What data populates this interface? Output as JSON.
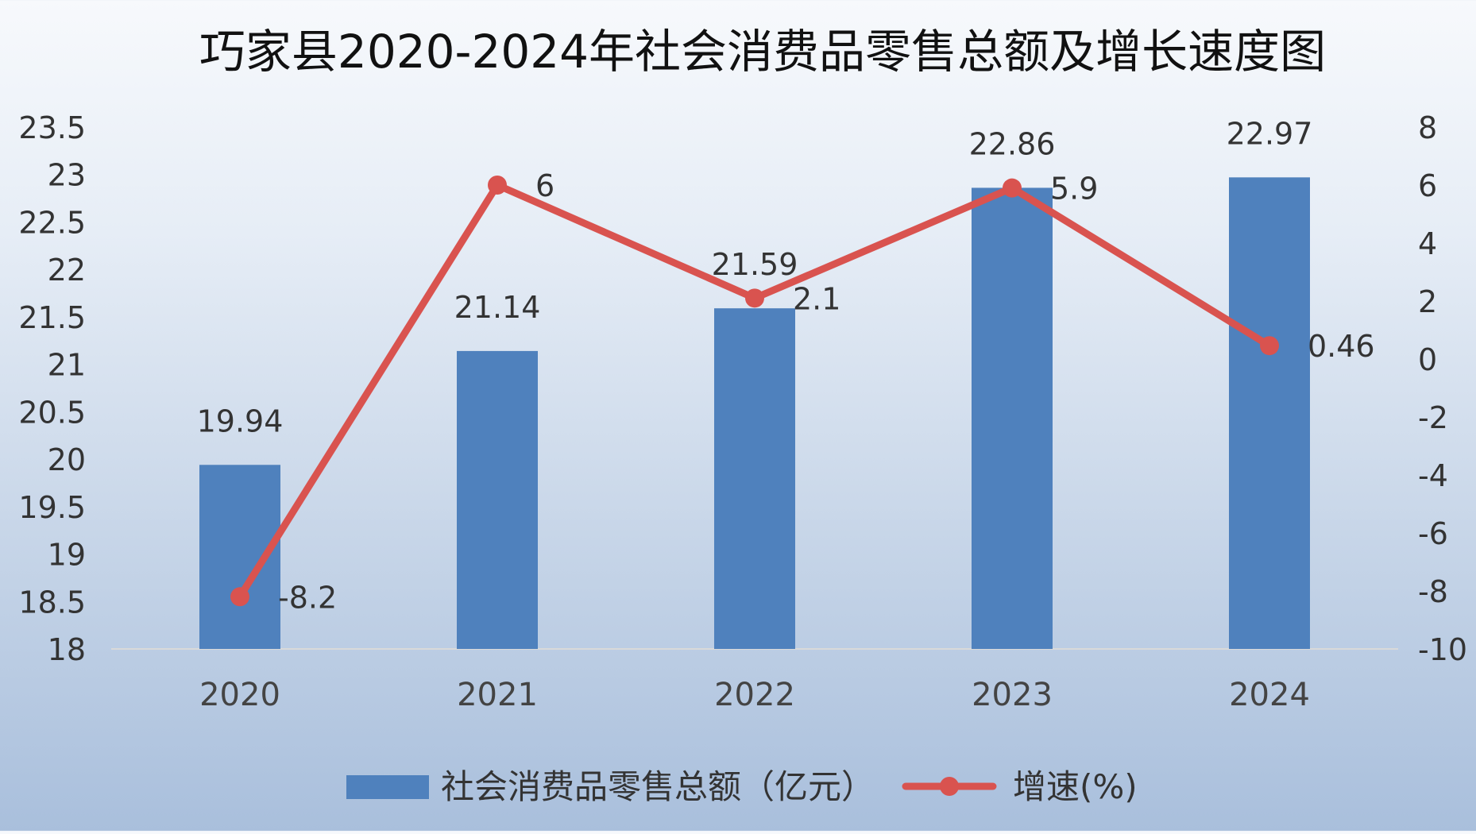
{
  "chart_data": {
    "type": "bar",
    "title": "巧家县2020-2024年社会消费品零售总额及增长速度图",
    "categories": [
      "2020",
      "2021",
      "2022",
      "2023",
      "2024"
    ],
    "series": [
      {
        "name": "社会消费品零售总额（亿元）",
        "type": "bar",
        "axis": "left",
        "color": "#4f81bd",
        "values": [
          19.94,
          21.14,
          21.59,
          22.86,
          22.97
        ],
        "labels": [
          "19.94",
          "21.14",
          "21.59",
          "22.86",
          "22.97"
        ]
      },
      {
        "name": "增速(%)",
        "type": "line",
        "axis": "right",
        "color": "#d9534f",
        "values": [
          -8.2,
          6,
          2.1,
          5.9,
          0.46
        ],
        "labels": [
          "-8.2",
          "6",
          "2.1",
          "5.9",
          "0.46"
        ]
      }
    ],
    "y_left": {
      "min": 18,
      "max": 23.5,
      "ticks": [
        "23.5",
        "23",
        "22.5",
        "22",
        "21.5",
        "21",
        "20.5",
        "20",
        "19.5",
        "19",
        "18.5",
        "18"
      ]
    },
    "y_right": {
      "min": -10,
      "max": 8,
      "ticks": [
        "8",
        "6",
        "4",
        "2",
        "0",
        "-2",
        "-4",
        "-6",
        "-8",
        "-10"
      ]
    },
    "grid": false,
    "legend_position": "bottom"
  }
}
